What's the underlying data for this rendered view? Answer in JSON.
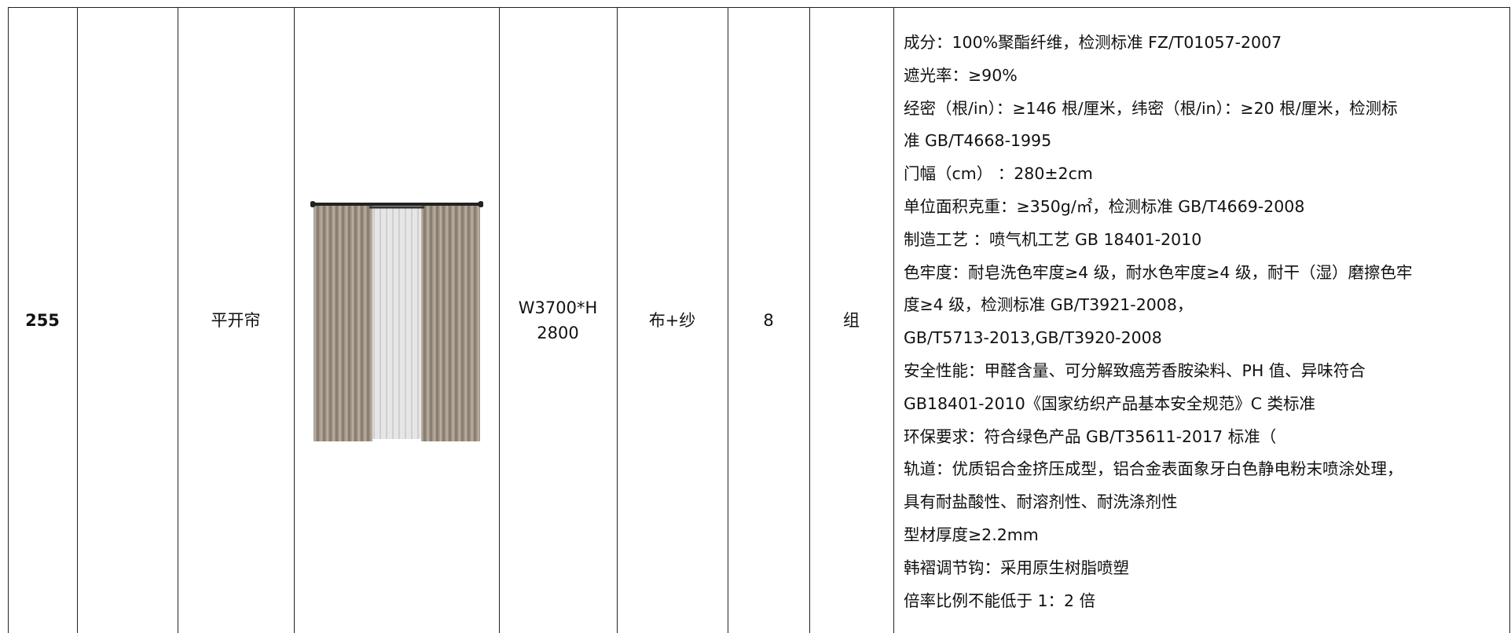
{
  "table": {
    "rows": [
      {
        "id": "255",
        "name": "平开帘",
        "size": [
          "W3700*H",
          "2800"
        ],
        "material": "布+纱",
        "quantity": "8",
        "unit": "组",
        "spec": [
          "成分：100%聚酯纤维，检测标准 FZ/T01057-2007",
          "遮光率：≥90%",
          "经密（根/in）：≥146 根/厘米，纬密（根/in）：≥20 根/厘米，检测标",
          "准 GB/T4668-1995",
          "门幅（cm）      ：280±2cm",
          "单位面积克重：≥350g/㎡，检测标准 GB/T4669-2008",
          "制造工艺 ：喷气机工艺 GB 18401-2010",
          "色牢度：耐皂洗色牢度≥4 级，耐水色牢度≥4 级，耐干（湿）磨擦色牢",
          "度≥4 级，检测标准 GB/T3921-2008，",
          "GB/T5713-2013,GB/T3920-2008",
          "安全性能：甲醛含量、可分解致癌芳香胺染料、PH 值、异味符合",
          "GB18401-2010《国家纺织产品基本安全规范》C 类标准",
          "环保要求：符合绿色产品 GB/T35611-2017 标准（",
          "轨道：优质铝合金挤压成型，铝合金表面象牙白色静电粉末喷涂处理，",
          "具有耐盐酸性、耐溶剂性、耐洗涤剂性",
          "型材厚度≥2.2mm",
          "韩褶调节钩：采用原生树脂喷塑",
          "倍率比例不能低于 1：2 倍"
        ]
      }
    ]
  }
}
